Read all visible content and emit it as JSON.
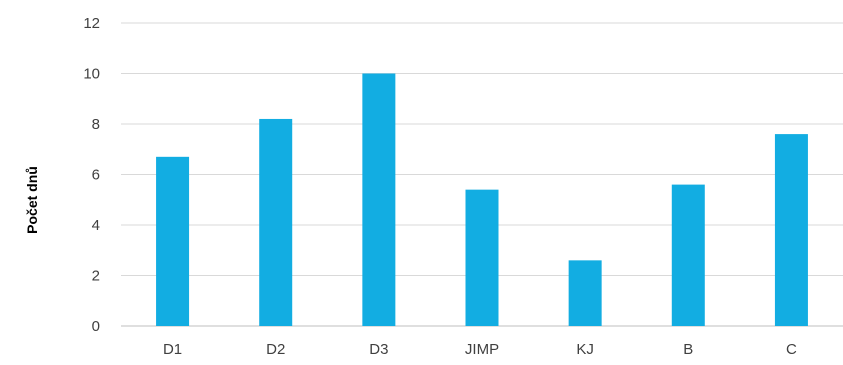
{
  "chart_data": {
    "type": "bar",
    "title": "",
    "xlabel": "",
    "ylabel": "Počet dnů",
    "categories": [
      "D1",
      "D2",
      "D3",
      "JIMP",
      "KJ",
      "B",
      "C"
    ],
    "values": [
      6.7,
      8.2,
      10,
      5.4,
      2.6,
      5.6,
      7.6
    ],
    "ylim": [
      0,
      12
    ],
    "yticks": [
      0,
      2,
      4,
      6,
      8,
      10,
      12
    ],
    "grid": true,
    "legend": "none",
    "colors": {
      "bar": "#12ade2"
    }
  }
}
